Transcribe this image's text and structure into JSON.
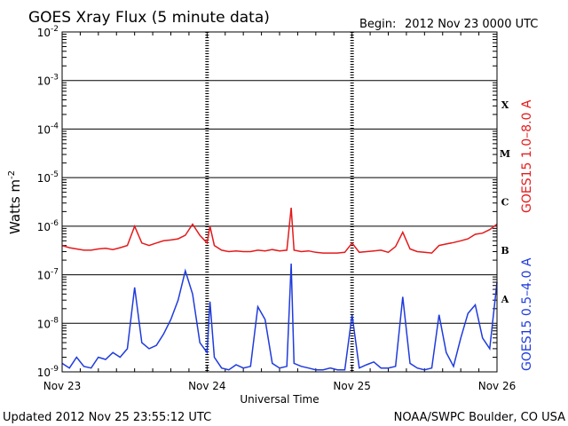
{
  "title": "GOES Xray Flux (5 minute data)",
  "begin_label": "Begin:",
  "begin_value": "2012 Nov 23 0000 UTC",
  "updated": "Updated 2012 Nov 25 23:55:12 UTC",
  "credit": "NOAA/SWPC Boulder, CO USA",
  "chart_data": {
    "type": "line",
    "title": "GOES Xray Flux (5 minute data)",
    "xlabel": "Universal Time",
    "ylabel_base": "Watts m",
    "ylabel_exp": "-2",
    "yscale": "log",
    "ylim_exp": [
      -9,
      -2
    ],
    "ylim": [
      1e-09,
      0.01
    ],
    "y_ticks": [
      {
        "base": "10",
        "exp": "-9",
        "value": -9
      },
      {
        "base": "10",
        "exp": "-8",
        "value": -8
      },
      {
        "base": "10",
        "exp": "-7",
        "value": -7
      },
      {
        "base": "10",
        "exp": "-6",
        "value": -6
      },
      {
        "base": "10",
        "exp": "-5",
        "value": -5
      },
      {
        "base": "10",
        "exp": "-4",
        "value": -4
      },
      {
        "base": "10",
        "exp": "-3",
        "value": -3
      },
      {
        "base": "10",
        "exp": "-2",
        "value": -2
      }
    ],
    "x_days_range": [
      0,
      3
    ],
    "x_ticks": [
      {
        "label": "Nov 23",
        "day": 0
      },
      {
        "label": "Nov 24",
        "day": 1
      },
      {
        "label": "Nov 25",
        "day": 2
      },
      {
        "label": "Nov 26",
        "day": 3
      }
    ],
    "flare_classes": [
      {
        "label": "A",
        "value": -7.5
      },
      {
        "label": "B",
        "value": -6.5
      },
      {
        "label": "C",
        "value": -5.5
      },
      {
        "label": "M",
        "value": -4.5
      },
      {
        "label": "X",
        "value": -3.5
      }
    ],
    "grid": true,
    "series": [
      {
        "name": "GOES15 1.0–8.0 A",
        "color": "#e41a1c",
        "x": [
          0,
          0.05,
          0.1,
          0.15,
          0.2,
          0.25,
          0.3,
          0.35,
          0.4,
          0.45,
          0.5,
          0.55,
          0.6,
          0.65,
          0.7,
          0.75,
          0.8,
          0.85,
          0.9,
          0.95,
          1.0,
          1.02,
          1.05,
          1.1,
          1.15,
          1.2,
          1.25,
          1.3,
          1.35,
          1.4,
          1.45,
          1.5,
          1.55,
          1.58,
          1.6,
          1.65,
          1.7,
          1.75,
          1.8,
          1.85,
          1.9,
          1.95,
          2.0,
          2.05,
          2.1,
          2.15,
          2.2,
          2.25,
          2.3,
          2.35,
          2.4,
          2.45,
          2.5,
          2.55,
          2.6,
          2.65,
          2.7,
          2.75,
          2.8,
          2.85,
          2.9,
          2.95,
          3.0
        ],
        "y": [
          4e-07,
          3.6e-07,
          3.4e-07,
          3.2e-07,
          3.2e-07,
          3.4e-07,
          3.5e-07,
          3.3e-07,
          3.6e-07,
          4e-07,
          1e-06,
          4.5e-07,
          4e-07,
          4.5e-07,
          5e-07,
          5.2e-07,
          5.5e-07,
          6.5e-07,
          1.1e-06,
          6.5e-07,
          4.5e-07,
          1e-06,
          4e-07,
          3.2e-07,
          3e-07,
          3.1e-07,
          3e-07,
          3e-07,
          3.2e-07,
          3.1e-07,
          3.3e-07,
          3.1e-07,
          3.2e-07,
          2.4e-06,
          3.2e-07,
          3e-07,
          3.1e-07,
          2.9e-07,
          2.8e-07,
          2.8e-07,
          2.8e-07,
          2.9e-07,
          4.5e-07,
          2.9e-07,
          3e-07,
          3.1e-07,
          3.2e-07,
          2.9e-07,
          3.8e-07,
          7.5e-07,
          3.4e-07,
          3e-07,
          2.9e-07,
          2.8e-07,
          4e-07,
          4.3e-07,
          4.6e-07,
          5e-07,
          5.5e-07,
          6.8e-07,
          7.2e-07,
          8.5e-07,
          1.1e-06
        ]
      },
      {
        "name": "GOES15 0.5–4.0 A",
        "color": "#1f3bdd",
        "x": [
          0,
          0.05,
          0.1,
          0.15,
          0.2,
          0.25,
          0.3,
          0.35,
          0.4,
          0.45,
          0.5,
          0.55,
          0.6,
          0.65,
          0.7,
          0.75,
          0.8,
          0.85,
          0.9,
          0.95,
          1.0,
          1.02,
          1.05,
          1.1,
          1.15,
          1.2,
          1.25,
          1.3,
          1.35,
          1.4,
          1.45,
          1.5,
          1.55,
          1.58,
          1.6,
          1.65,
          1.7,
          1.75,
          1.8,
          1.85,
          1.9,
          1.95,
          2.0,
          2.05,
          2.1,
          2.15,
          2.2,
          2.25,
          2.3,
          2.35,
          2.4,
          2.45,
          2.5,
          2.55,
          2.6,
          2.65,
          2.7,
          2.75,
          2.8,
          2.85,
          2.9,
          2.95,
          3.0
        ],
        "y": [
          1.5e-09,
          1.2e-09,
          2e-09,
          1.3e-09,
          1.2e-09,
          2e-09,
          1.8e-09,
          2.5e-09,
          2e-09,
          3e-09,
          5.5e-08,
          4e-09,
          3e-09,
          3.5e-09,
          6e-09,
          1.2e-08,
          3e-08,
          1.2e-07,
          4e-08,
          4e-09,
          2.5e-09,
          2.8e-08,
          2e-09,
          1.2e-09,
          1.1e-09,
          1.4e-09,
          1.2e-09,
          1.3e-09,
          2.2e-08,
          1.2e-08,
          1.5e-09,
          1.2e-09,
          1.3e-09,
          1.7e-07,
          1.5e-09,
          1.3e-09,
          1.2e-09,
          1.1e-09,
          1.1e-09,
          1.2e-09,
          1.1e-09,
          1.1e-09,
          1.5e-08,
          1.2e-09,
          1.4e-09,
          1.6e-09,
          1.2e-09,
          1.2e-09,
          1.3e-09,
          3.5e-08,
          1.5e-09,
          1.2e-09,
          1.1e-09,
          1.2e-09,
          1.5e-08,
          2.5e-09,
          1.3e-09,
          5e-09,
          1.6e-08,
          2.4e-08,
          5e-09,
          3e-09,
          7e-08
        ]
      }
    ]
  }
}
